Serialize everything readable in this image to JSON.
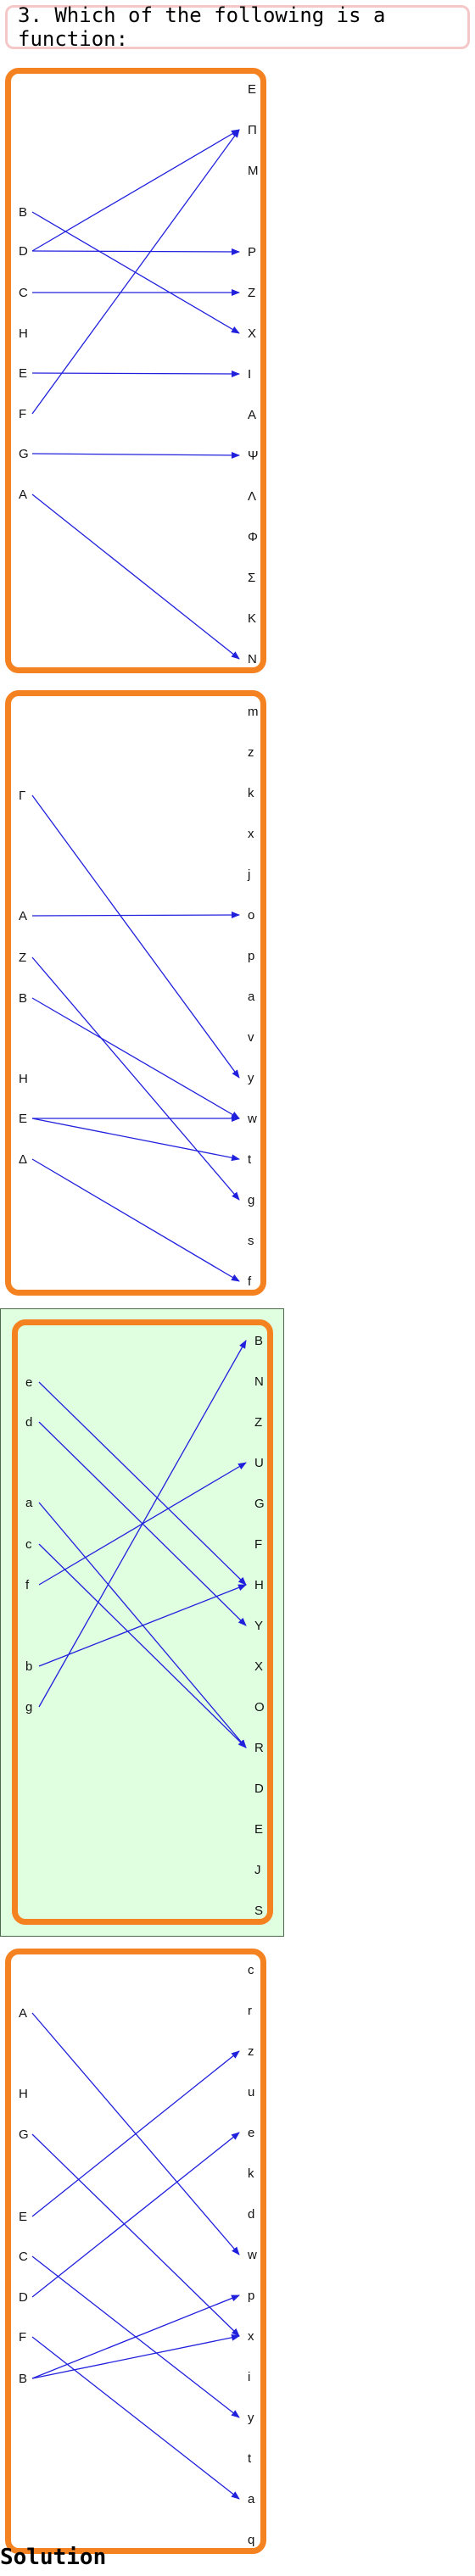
{
  "question": {
    "text": "3. Which of the following is a function:"
  },
  "solution_label": "Solution",
  "colors": {
    "frame": "#f58220",
    "arrow": "#2020dd",
    "highlight": "#e0ffe0",
    "question_border": "#f4c8c8"
  },
  "options": [
    {
      "id": "A",
      "highlighted": false,
      "left": [
        "B",
        "D",
        "C",
        "H",
        "E",
        "F",
        "G",
        "A"
      ],
      "right": [
        "E",
        "Π",
        "M",
        "",
        "P",
        "Z",
        "X",
        "I",
        "A",
        "Ψ",
        "Λ",
        "Φ",
        "Σ",
        "K",
        "N"
      ],
      "edges": [
        [
          "B",
          "X"
        ],
        [
          "D",
          "Π"
        ],
        [
          "D",
          "P"
        ],
        [
          "C",
          "Z"
        ],
        [
          "E",
          "I"
        ],
        [
          "F",
          "Π"
        ],
        [
          "G",
          "Ψ"
        ],
        [
          "A",
          "N"
        ]
      ]
    },
    {
      "id": "B",
      "highlighted": false,
      "left": [
        "Γ",
        "A",
        "Z",
        "B",
        "H",
        "E",
        "Δ"
      ],
      "right": [
        "m",
        "z",
        "k",
        "x",
        "j",
        "o",
        "p",
        "a",
        "v",
        "y",
        "w",
        "t",
        "g",
        "s",
        "f"
      ],
      "edges": [
        [
          "Γ",
          "y"
        ],
        [
          "A",
          "o"
        ],
        [
          "Z",
          "g"
        ],
        [
          "B",
          "w"
        ],
        [
          "E",
          "w"
        ],
        [
          "E",
          "t"
        ],
        [
          "Δ",
          "f"
        ]
      ]
    },
    {
      "id": "C",
      "highlighted": true,
      "left": [
        "e",
        "d",
        "a",
        "c",
        "f",
        "b",
        "g"
      ],
      "right": [
        "B",
        "N",
        "Z",
        "U",
        "G",
        "F",
        "H",
        "Y",
        "X",
        "O",
        "R",
        "D",
        "E",
        "J",
        "S"
      ],
      "edges": [
        [
          "e",
          "H"
        ],
        [
          "d",
          "Y"
        ],
        [
          "a",
          "R"
        ],
        [
          "c",
          "R"
        ],
        [
          "f",
          "U"
        ],
        [
          "b",
          "H"
        ],
        [
          "g",
          "B"
        ]
      ]
    },
    {
      "id": "D",
      "highlighted": false,
      "left": [
        "A",
        "H",
        "G",
        "E",
        "C",
        "D",
        "F",
        "B"
      ],
      "right": [
        "c",
        "r",
        "z",
        "u",
        "e",
        "k",
        "d",
        "w",
        "p",
        "x",
        "i",
        "y",
        "t",
        "a",
        "q"
      ],
      "edges": [
        [
          "A",
          "w"
        ],
        [
          "G",
          "x"
        ],
        [
          "E",
          "z"
        ],
        [
          "C",
          "y"
        ],
        [
          "D",
          "e"
        ],
        [
          "F",
          "a"
        ],
        [
          "B",
          "p"
        ],
        [
          "B",
          "x"
        ]
      ]
    }
  ]
}
